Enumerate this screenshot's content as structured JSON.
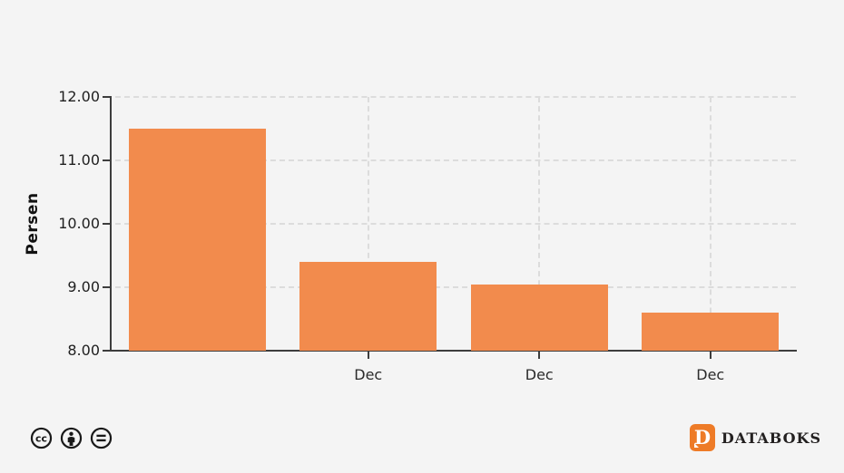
{
  "chart_data": {
    "type": "bar",
    "ylabel": "Persen",
    "xlabel": "",
    "ylim": [
      8,
      12
    ],
    "yticks": [
      {
        "value": 12,
        "label": "12.00"
      },
      {
        "value": 11,
        "label": "11.00"
      },
      {
        "value": 10,
        "label": "10.00"
      },
      {
        "value": 9,
        "label": "9.00"
      },
      {
        "value": 8,
        "label": "8.00"
      }
    ],
    "categories": [
      "",
      "Dec",
      "Dec",
      "Dec"
    ],
    "values": [
      11.5,
      9.4,
      9.05,
      8.6
    ],
    "grid": "dashed, horizontal at labeled yticks above baseline, vertical at labeled categories",
    "legend": "none"
  },
  "colors": {
    "background": "#f4f4f4",
    "bar": "#f28b4d",
    "axis": "#3d3d3d",
    "gridline": "#dcdcdc",
    "tick_label": "#1f1f1f",
    "brand_orange": "#ee7b27",
    "brand_text": "#232020"
  },
  "footer": {
    "license_icons": [
      "cc-icon",
      "cc-by-person-icon",
      "cc-nd-equals-icon"
    ],
    "brand_letter": "D",
    "brand_name": "DATABOKS"
  }
}
